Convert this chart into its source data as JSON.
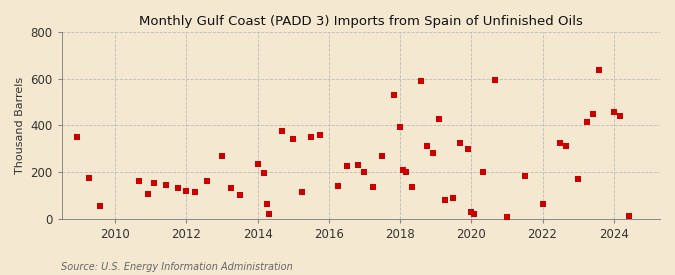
{
  "title": "Monthly Gulf Coast (PADD 3) Imports from Spain of Unfinished Oils",
  "ylabel": "Thousand Barrels",
  "source": "Source: U.S. Energy Information Administration",
  "background_color": "#f5e8d0",
  "plot_background": "#f5e8d0",
  "marker_color": "#cc0000",
  "marker_size": 14,
  "ylim": [
    0,
    800
  ],
  "yticks": [
    0,
    200,
    400,
    600,
    800
  ],
  "xlim": [
    2008.5,
    2025.3
  ],
  "xticks": [
    2010,
    2012,
    2014,
    2016,
    2018,
    2020,
    2022,
    2024
  ],
  "grid_color": "#bbbbbb",
  "grid_linestyle": "--",
  "data": [
    [
      2008.92,
      350
    ],
    [
      2009.25,
      175
    ],
    [
      2009.58,
      55
    ],
    [
      2010.67,
      160
    ],
    [
      2010.92,
      105
    ],
    [
      2011.08,
      155
    ],
    [
      2011.42,
      145
    ],
    [
      2011.75,
      130
    ],
    [
      2012.0,
      120
    ],
    [
      2012.25,
      115
    ],
    [
      2012.58,
      160
    ],
    [
      2013.0,
      270
    ],
    [
      2013.25,
      130
    ],
    [
      2013.5,
      100
    ],
    [
      2014.0,
      235
    ],
    [
      2014.17,
      195
    ],
    [
      2014.25,
      65
    ],
    [
      2014.33,
      20
    ],
    [
      2014.67,
      375
    ],
    [
      2015.0,
      340
    ],
    [
      2015.25,
      115
    ],
    [
      2015.5,
      350
    ],
    [
      2015.75,
      360
    ],
    [
      2016.25,
      140
    ],
    [
      2016.5,
      225
    ],
    [
      2016.83,
      230
    ],
    [
      2017.0,
      200
    ],
    [
      2017.25,
      135
    ],
    [
      2017.5,
      270
    ],
    [
      2017.83,
      530
    ],
    [
      2018.0,
      395
    ],
    [
      2018.08,
      210
    ],
    [
      2018.17,
      200
    ],
    [
      2018.33,
      135
    ],
    [
      2018.58,
      590
    ],
    [
      2018.75,
      310
    ],
    [
      2018.92,
      280
    ],
    [
      2019.08,
      425
    ],
    [
      2019.25,
      80
    ],
    [
      2019.5,
      90
    ],
    [
      2019.67,
      325
    ],
    [
      2019.92,
      300
    ],
    [
      2020.0,
      30
    ],
    [
      2020.08,
      20
    ],
    [
      2020.33,
      200
    ],
    [
      2020.67,
      595
    ],
    [
      2021.0,
      8
    ],
    [
      2021.5,
      185
    ],
    [
      2022.0,
      65
    ],
    [
      2022.5,
      325
    ],
    [
      2022.67,
      310
    ],
    [
      2023.0,
      170
    ],
    [
      2023.25,
      415
    ],
    [
      2023.42,
      450
    ],
    [
      2023.58,
      635
    ],
    [
      2024.0,
      455
    ],
    [
      2024.17,
      440
    ],
    [
      2024.42,
      10
    ]
  ]
}
